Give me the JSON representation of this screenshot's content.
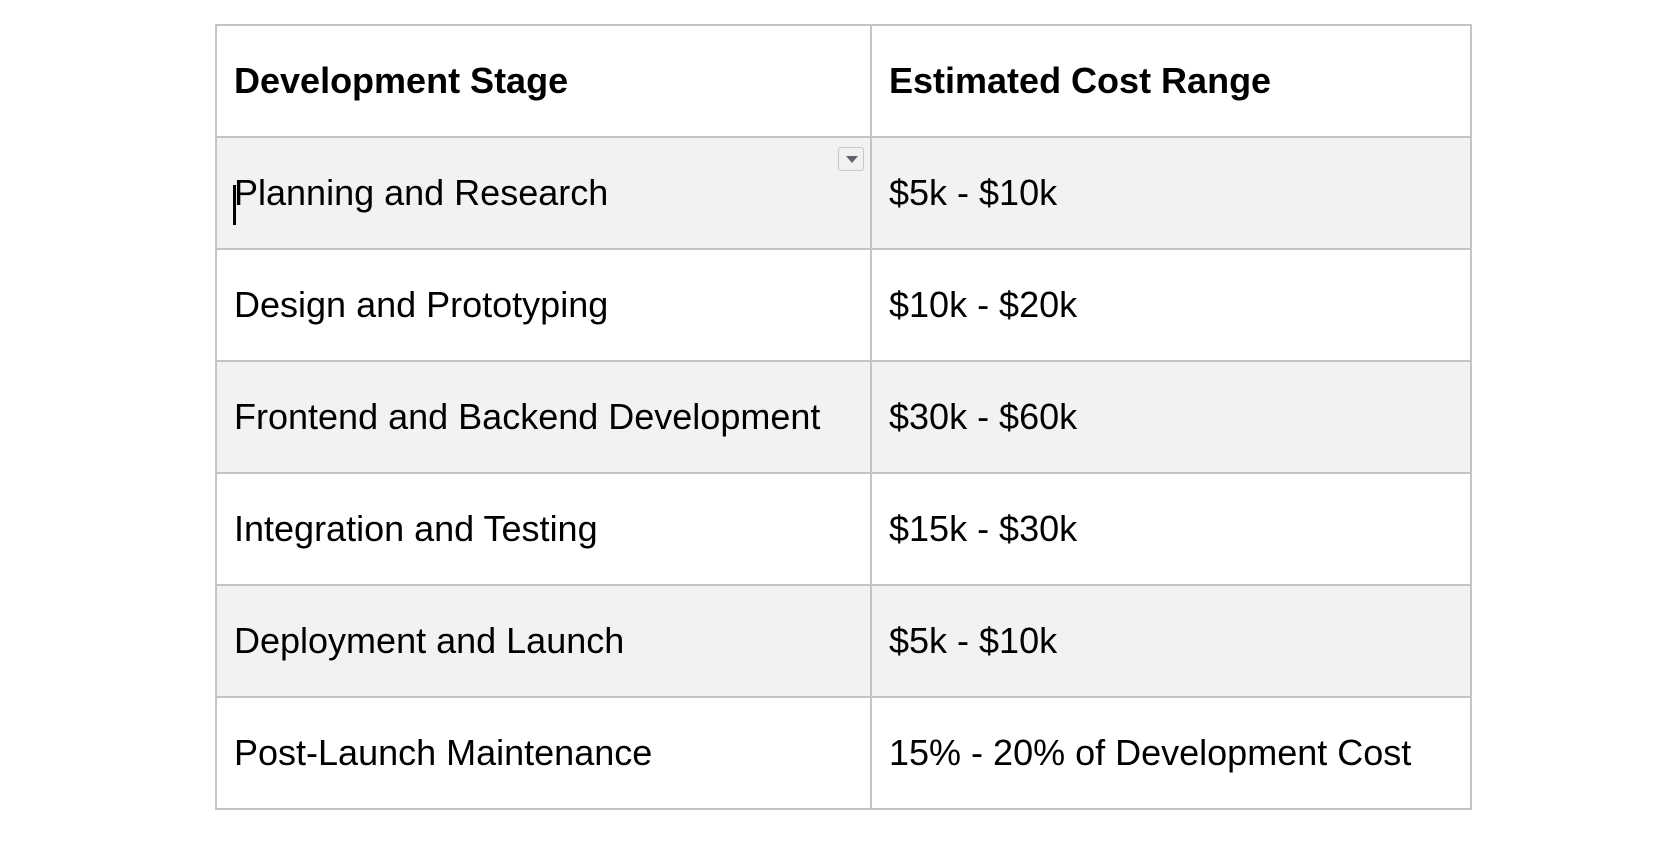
{
  "table": {
    "headers": [
      "Development Stage",
      "Estimated Cost Range"
    ],
    "rows": [
      [
        "Planning and Research",
        "$5k - $10k"
      ],
      [
        "Design and Prototyping",
        "$10k - $20k"
      ],
      [
        "Frontend and Backend Development",
        "$30k - $60k"
      ],
      [
        "Integration and Testing",
        "$15k - $30k"
      ],
      [
        "Deployment and Launch",
        "$5k - $10k"
      ],
      [
        "Post-Launch Maintenance",
        "15% - 20% of Development Cost"
      ]
    ]
  },
  "colors": {
    "border": "#c4c4c4",
    "row_shaded": "#f2f2f2",
    "row_plain": "#ffffff",
    "text": "#000000"
  },
  "icons": {
    "cell_menu": "chevron-down-icon"
  }
}
